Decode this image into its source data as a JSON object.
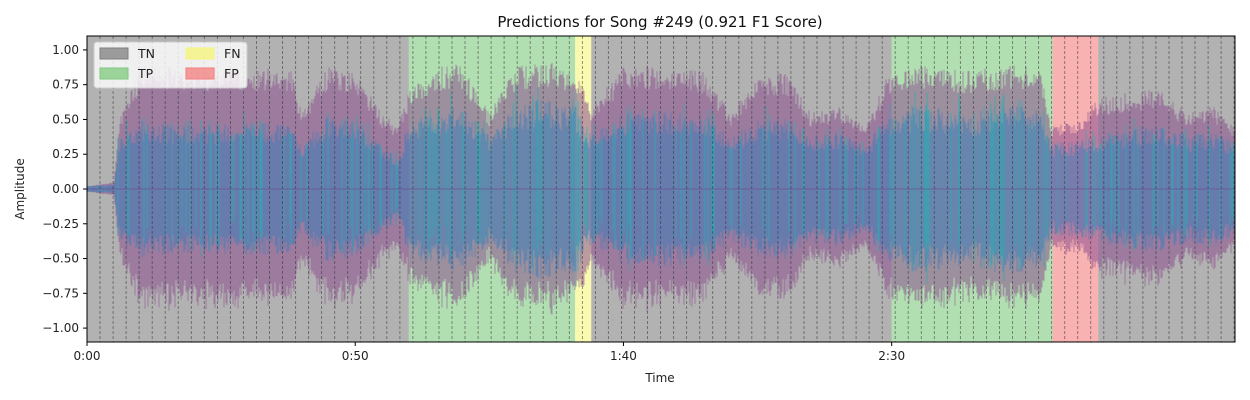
{
  "chart_data": {
    "type": "area",
    "title": "Predictions for Song #249 (0.921 F1 Score)",
    "xlabel": "Time",
    "ylabel": "Amplitude",
    "x_unit": "seconds",
    "xlim": [
      0,
      214
    ],
    "ylim": [
      -1.1,
      1.1
    ],
    "x_ticks": [
      {
        "value": 0,
        "label": "0:00"
      },
      {
        "value": 50,
        "label": "0:50"
      },
      {
        "value": 100,
        "label": "1:40"
      },
      {
        "value": 150,
        "label": "2:30"
      }
    ],
    "y_ticks": [
      {
        "value": 1.0,
        "label": "1.00"
      },
      {
        "value": 0.75,
        "label": "0.75"
      },
      {
        "value": 0.5,
        "label": "0.50"
      },
      {
        "value": 0.25,
        "label": "0.25"
      },
      {
        "value": 0.0,
        "label": "0.00"
      },
      {
        "value": -0.25,
        "label": "−0.25"
      },
      {
        "value": -0.5,
        "label": "−0.50"
      },
      {
        "value": -0.75,
        "label": "−0.75"
      },
      {
        "value": -1.0,
        "label": "−1.00"
      }
    ],
    "grid": false,
    "legend_placement": "top-left",
    "legend": [
      {
        "label": "TN",
        "color": "#7f7f7f"
      },
      {
        "label": "TP",
        "color": "#7fc97f"
      },
      {
        "label": "FN",
        "color": "#f5f57a"
      },
      {
        "label": "FP",
        "color": "#f47f7f"
      }
    ],
    "segments": [
      {
        "class": "TN",
        "start": 0,
        "end": 60
      },
      {
        "class": "TP",
        "start": 60,
        "end": 91
      },
      {
        "class": "FN",
        "start": 91,
        "end": 94
      },
      {
        "class": "TN",
        "start": 94,
        "end": 150
      },
      {
        "class": "TP",
        "start": 150,
        "end": 180
      },
      {
        "class": "FP",
        "start": 180,
        "end": 188.5
      },
      {
        "class": "TN",
        "start": 188.5,
        "end": 214
      }
    ],
    "beat_interval": 2.43,
    "waveform_envelope": {
      "x": [
        0,
        5,
        6,
        10,
        20,
        30,
        38,
        40,
        45,
        50,
        55,
        58,
        60,
        65,
        70,
        75,
        80,
        85,
        88,
        91,
        94,
        100,
        110,
        115,
        120,
        125,
        130,
        135,
        140,
        145,
        150,
        155,
        160,
        165,
        170,
        175,
        178,
        180,
        185,
        188,
        195,
        200,
        205,
        210,
        214
      ],
      "outer": [
        0.02,
        0.05,
        0.5,
        0.9,
        0.88,
        0.88,
        0.86,
        0.55,
        0.9,
        0.85,
        0.55,
        0.45,
        0.7,
        0.88,
        0.9,
        0.55,
        0.88,
        0.92,
        0.9,
        0.86,
        0.6,
        0.88,
        0.9,
        0.85,
        0.55,
        0.8,
        0.85,
        0.55,
        0.6,
        0.45,
        0.88,
        0.9,
        0.86,
        0.85,
        0.88,
        0.9,
        0.85,
        0.45,
        0.5,
        0.65,
        0.7,
        0.72,
        0.55,
        0.6,
        0.45
      ],
      "core": [
        0.02,
        0.03,
        0.35,
        0.45,
        0.42,
        0.44,
        0.42,
        0.3,
        0.48,
        0.45,
        0.3,
        0.2,
        0.45,
        0.5,
        0.55,
        0.35,
        0.55,
        0.6,
        0.55,
        0.55,
        0.35,
        0.5,
        0.52,
        0.5,
        0.35,
        0.45,
        0.48,
        0.35,
        0.38,
        0.3,
        0.5,
        0.55,
        0.52,
        0.5,
        0.55,
        0.55,
        0.5,
        0.3,
        0.32,
        0.35,
        0.4,
        0.42,
        0.35,
        0.38,
        0.3
      ]
    }
  }
}
